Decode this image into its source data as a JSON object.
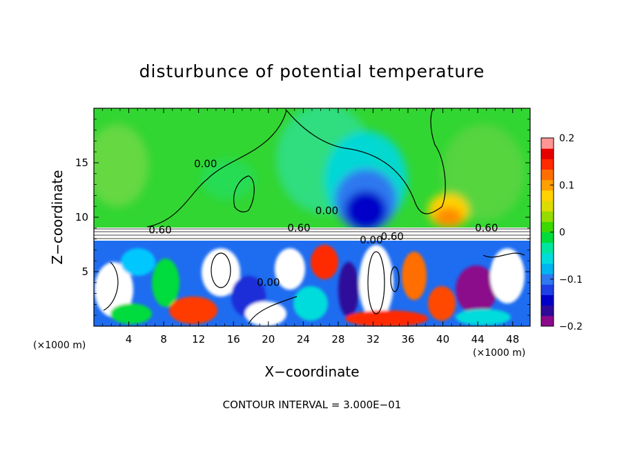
{
  "chart_data": {
    "type": "heatmap",
    "title": "disturbunce of potential temperature",
    "xlabel": "X−coordinate",
    "ylabel": "Z−coordinate",
    "x_unit_left": "(×1000 m)",
    "x_unit_right": "(×1000 m)",
    "xlim": [
      0,
      50
    ],
    "ylim": [
      0,
      20
    ],
    "x_ticks": [
      4,
      8,
      12,
      16,
      20,
      24,
      28,
      32,
      36,
      40,
      44,
      48
    ],
    "y_ticks": [
      5,
      10,
      15
    ],
    "colorbar": {
      "range": [
        -0.2,
        0.2
      ],
      "tick_values": [
        0.2,
        0.1,
        0,
        -0.1,
        -0.2
      ],
      "tick_labels": [
        "0.2",
        "0.1",
        "0",
        "−0.1",
        "−0.2"
      ],
      "colors": [
        "#8b0a8b",
        "#2f0a9a",
        "#0000c8",
        "#1f3fe6",
        "#2f78ef",
        "#00b4f0",
        "#00dcdc",
        "#00e6a0",
        "#00dc3c",
        "#3cd800",
        "#96dc00",
        "#dcdc00",
        "#ffd200",
        "#ffa000",
        "#ff6e00",
        "#ff2a00",
        "#e60000",
        "#ff9696"
      ]
    },
    "contour_labels": [
      {
        "text": "0.00",
        "x": 12.8,
        "y": 14.6
      },
      {
        "text": "0.00",
        "x": 26.7,
        "y": 10.3
      },
      {
        "text": "0.00",
        "x": 20.0,
        "y": 3.7
      },
      {
        "text": "0.60",
        "x": 7.6,
        "y": 8.5
      },
      {
        "text": "0.60",
        "x": 23.5,
        "y": 8.7
      },
      {
        "text": "0.60",
        "x": 45.0,
        "y": 8.7
      },
      {
        "text": "0.00",
        "x": 31.8,
        "y": 7.6
      },
      {
        "text": "0.60",
        "x": 34.2,
        "y": 7.9
      }
    ],
    "footer": "CONTOUR INTERVAL = 3.000E−01"
  }
}
